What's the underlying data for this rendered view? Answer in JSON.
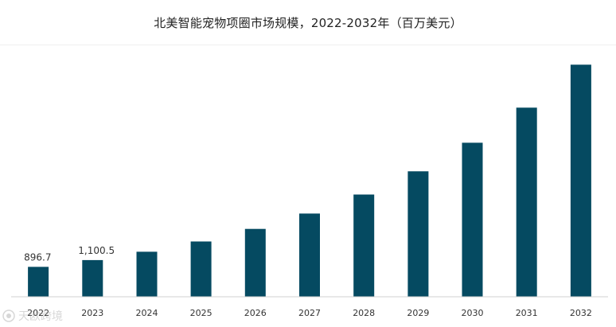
{
  "chart_data": {
    "type": "bar",
    "title": "北美智能宠物项圈市场规模，2022-2032年（百万美元）",
    "categories": [
      "2022",
      "2023",
      "2024",
      "2025",
      "2026",
      "2027",
      "2028",
      "2029",
      "2030",
      "2031",
      "2032"
    ],
    "values": [
      896.7,
      1100.5,
      1351,
      1658,
      2036,
      2498,
      3067,
      3765,
      4621,
      5673,
      6963
    ],
    "data_labels": [
      {
        "category": "2022",
        "text": "896.7"
      },
      {
        "category": "2023",
        "text": "1,100.5"
      }
    ],
    "xlabel": "",
    "ylabel": "",
    "ylim": [
      0,
      7400
    ],
    "grid": false,
    "legend": "none",
    "bar_color": "#054a61"
  },
  "watermark": {
    "text": "天欧跨境"
  }
}
